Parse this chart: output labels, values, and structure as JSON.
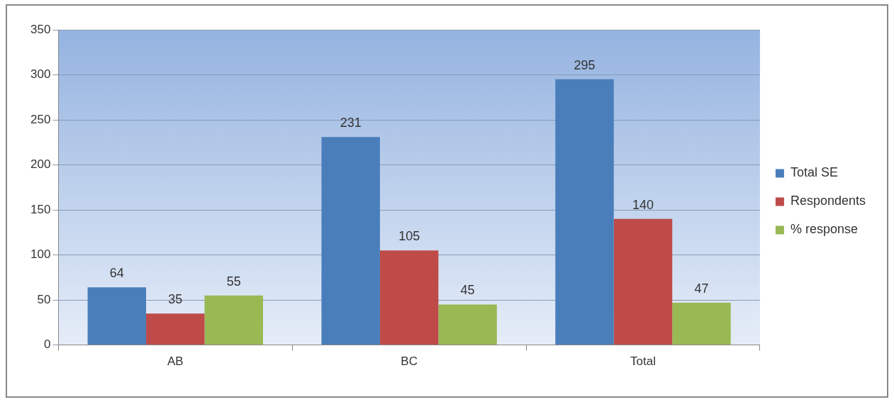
{
  "chart_data": {
    "type": "bar",
    "categories": [
      "AB",
      "BC",
      "Total"
    ],
    "series": [
      {
        "name": "Total SE",
        "color": "#4a7ebb",
        "values": [
          64,
          231,
          295
        ]
      },
      {
        "name": "Respondents",
        "color": "#be4b48",
        "values": [
          35,
          105,
          140
        ]
      },
      {
        "name": "% response",
        "color": "#98b954",
        "values": [
          55,
          45,
          47
        ]
      }
    ],
    "ylim": [
      0,
      350
    ],
    "yticks": [
      0,
      50,
      100,
      150,
      200,
      250,
      300,
      350
    ],
    "grid": "y",
    "legend": "right",
    "data_labels": true
  }
}
